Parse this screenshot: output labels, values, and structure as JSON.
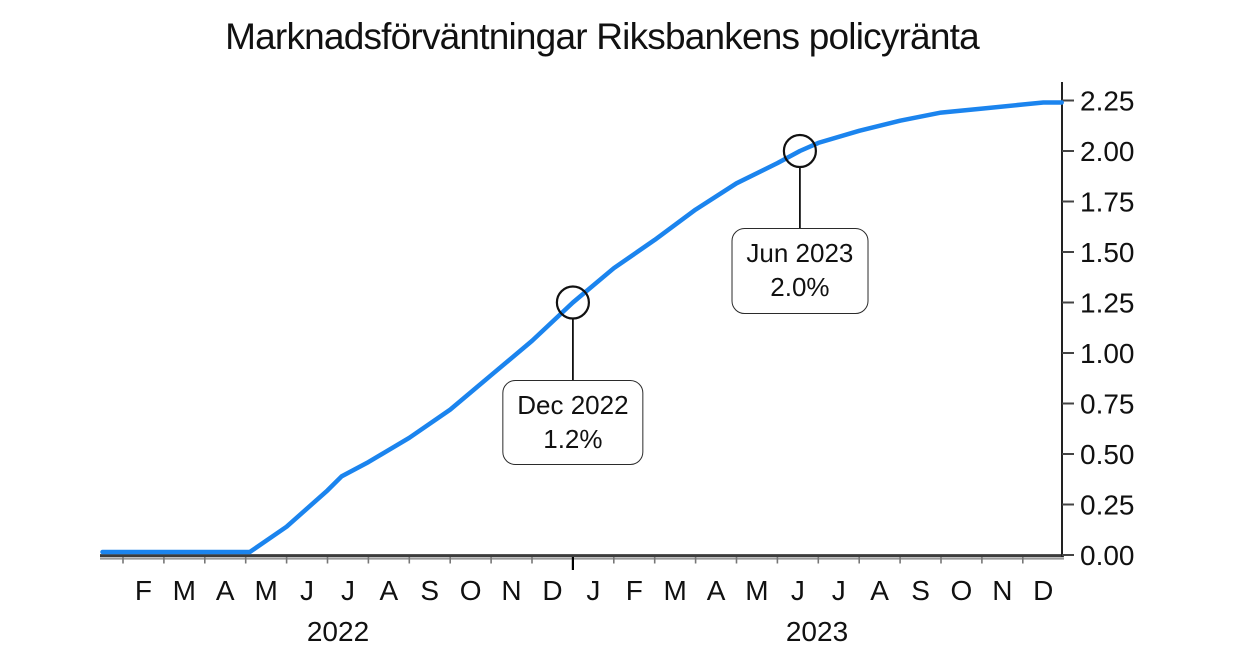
{
  "chart_data": {
    "type": "line",
    "title": "Marknadsförväntningar Riksbankens policyränta",
    "xlabel": "",
    "ylabel": "",
    "ylim": [
      0,
      2.35
    ],
    "grid": "off",
    "legend": "none",
    "y_axis_side": "right",
    "y_ticks": [
      "0.00",
      "0.25",
      "0.50",
      "0.75",
      "1.00",
      "1.25",
      "1.50",
      "1.75",
      "2.00",
      "2.25"
    ],
    "y_tick_values": [
      0,
      0.25,
      0.5,
      0.75,
      1.0,
      1.25,
      1.5,
      1.75,
      2.0,
      2.25
    ],
    "x_axis": {
      "unit": "months since Jan 2022",
      "years": [
        {
          "label": "2022",
          "months": [
            "F",
            "M",
            "A",
            "M",
            "J",
            "J",
            "A",
            "S",
            "O",
            "N",
            "D"
          ]
        },
        {
          "label": "2023",
          "months": [
            "J",
            "F",
            "M",
            "A",
            "M",
            "J",
            "J",
            "A",
            "S",
            "O",
            "N",
            "D"
          ]
        }
      ]
    },
    "series": [
      {
        "name": "market-expectation-policy-rate",
        "color": "#1B84EE",
        "points_month_value": [
          [
            0.5,
            0.0
          ],
          [
            1,
            0.0
          ],
          [
            2,
            0.0
          ],
          [
            3,
            0.0
          ],
          [
            4,
            0.0
          ],
          [
            4.1,
            0.0
          ],
          [
            5,
            0.14
          ],
          [
            6,
            0.32
          ],
          [
            6.35,
            0.39
          ],
          [
            7,
            0.46
          ],
          [
            8,
            0.58
          ],
          [
            9,
            0.72
          ],
          [
            10,
            0.89
          ],
          [
            11,
            1.06
          ],
          [
            12,
            1.25
          ],
          [
            13,
            1.42
          ],
          [
            14,
            1.56
          ],
          [
            15,
            1.71
          ],
          [
            16,
            1.84
          ],
          [
            17,
            1.94
          ],
          [
            17.55,
            2.0
          ],
          [
            18,
            2.04
          ],
          [
            19,
            2.1
          ],
          [
            20,
            2.15
          ],
          [
            21,
            2.19
          ],
          [
            22,
            2.21
          ],
          [
            23,
            2.23
          ],
          [
            23.5,
            2.24
          ],
          [
            23.95,
            2.24
          ]
        ]
      }
    ],
    "annotations": [
      {
        "title": "Dec 2022",
        "value_text": "1.2%",
        "month": 12,
        "y_value": 1.25
      },
      {
        "title": "Jun 2023",
        "value_text": "2.0%",
        "month": 17.55,
        "y_value": 2.0
      }
    ]
  }
}
